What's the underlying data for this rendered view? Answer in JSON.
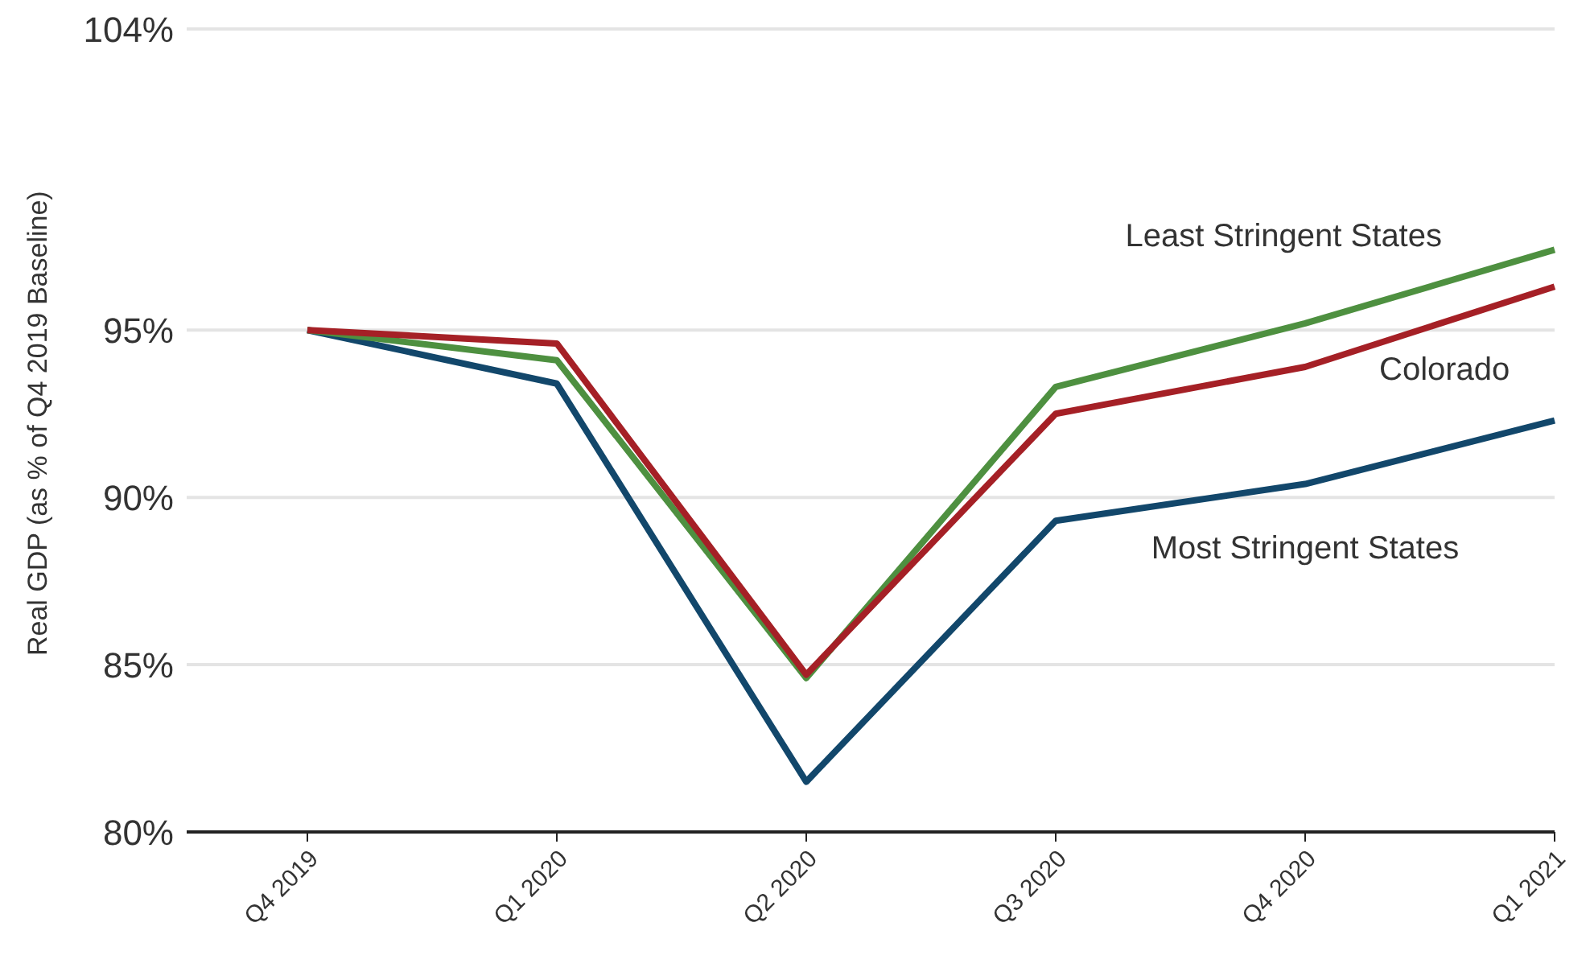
{
  "chart_data": {
    "type": "line",
    "ylabel": "Real GDP (as % of Q4 2019 Baseline)",
    "categories": [
      "Q4 2019",
      "Q1 2020",
      "Q2 2020",
      "Q3 2020",
      "Q4 2020",
      "Q1 2021"
    ],
    "series": [
      {
        "name": "Most Stringent States",
        "color": "#12476b",
        "values": [
          95,
          93.4,
          81.5,
          89.3,
          90.4,
          92.3
        ]
      },
      {
        "name": "Least Stringent States",
        "color": "#4e9040",
        "values": [
          95,
          94.1,
          84.6,
          93.3,
          95.2,
          97.4
        ]
      },
      {
        "name": "Colorado",
        "color": "#a52026",
        "values": [
          95,
          94.6,
          84.7,
          92.5,
          93.9,
          96.3
        ]
      }
    ],
    "ylim": [
      80,
      104
    ],
    "yticks": [
      {
        "value": 80,
        "label": "80%"
      },
      {
        "value": 85,
        "label": "85%"
      },
      {
        "value": 90,
        "label": "90%"
      },
      {
        "value": 95,
        "label": "95%"
      },
      {
        "value": 104,
        "label": "104%"
      }
    ],
    "grid": "y",
    "marker": "none",
    "line_style": "solid"
  }
}
